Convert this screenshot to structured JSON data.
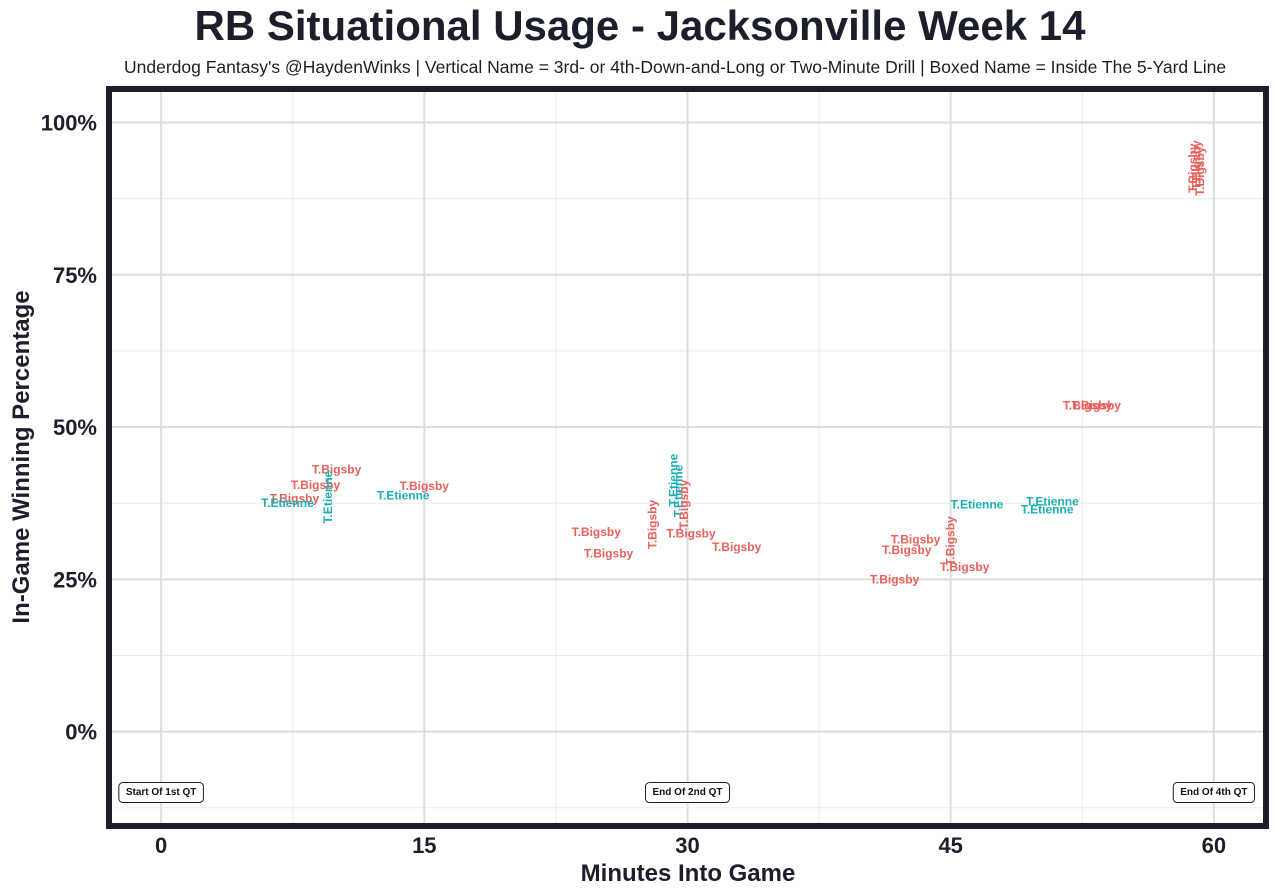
{
  "chart_data": {
    "type": "scatter",
    "title": "RB Situational Usage - Jacksonville Week 14",
    "subtitle": "Underdog Fantasy's @HaydenWinks | Vertical Name = 3rd- or 4th-Down-and-Long or Two-Minute Drill | Boxed Name = Inside The 5-Yard Line",
    "xlabel": "Minutes Into Game",
    "ylabel": "In-Game Winning Percentage",
    "xlim": [
      -2.8,
      62.8
    ],
    "ylim": [
      -15,
      105
    ],
    "x_ticks": [
      0,
      15,
      30,
      45,
      60
    ],
    "x_tick_labels": [
      "0",
      "15",
      "30",
      "45",
      "60"
    ],
    "y_ticks": [
      0,
      25,
      50,
      75,
      100
    ],
    "y_tick_labels": [
      "0%",
      "25%",
      "50%",
      "75%",
      "100%"
    ],
    "grid": true,
    "colors": {
      "T.Bigsby": "#e8615a",
      "T.Etienne": "#1aafb4"
    },
    "annotations": [
      {
        "x": 0,
        "y": -10,
        "text": "Start Of 1st QT"
      },
      {
        "x": 30,
        "y": -10,
        "text": "End Of 2nd QT"
      },
      {
        "x": 60,
        "y": -10,
        "text": "End Of 4th QT"
      }
    ],
    "points": [
      {
        "player": "T.Bigsby",
        "x": 10.0,
        "y": 43.0,
        "vertical": false
      },
      {
        "player": "T.Bigsby",
        "x": 8.8,
        "y": 40.5,
        "vertical": false
      },
      {
        "player": "T.Bigsby",
        "x": 7.6,
        "y": 38.3,
        "vertical": false
      },
      {
        "player": "T.Etienne",
        "x": 7.2,
        "y": 37.5,
        "vertical": false
      },
      {
        "player": "T.Etienne",
        "x": 9.5,
        "y": 38.5,
        "vertical": true
      },
      {
        "player": "T.Bigsby",
        "x": 15.0,
        "y": 40.3,
        "vertical": false
      },
      {
        "player": "T.Etienne",
        "x": 13.8,
        "y": 38.8,
        "vertical": false
      },
      {
        "player": "T.Bigsby",
        "x": 24.8,
        "y": 32.8,
        "vertical": false
      },
      {
        "player": "T.Bigsby",
        "x": 25.5,
        "y": 29.2,
        "vertical": false
      },
      {
        "player": "T.Bigsby",
        "x": 28.0,
        "y": 34.0,
        "vertical": true
      },
      {
        "player": "T.Etienne",
        "x": 29.2,
        "y": 41.3,
        "vertical": true
      },
      {
        "player": "T.Etienne",
        "x": 29.5,
        "y": 39.5,
        "vertical": true
      },
      {
        "player": "T.Bigsby",
        "x": 29.8,
        "y": 37.3,
        "vertical": true
      },
      {
        "player": "T.Bigsby",
        "x": 30.2,
        "y": 32.5,
        "vertical": false
      },
      {
        "player": "T.Bigsby",
        "x": 32.8,
        "y": 30.3,
        "vertical": false
      },
      {
        "player": "T.Bigsby",
        "x": 43.0,
        "y": 31.5,
        "vertical": false
      },
      {
        "player": "T.Bigsby",
        "x": 42.5,
        "y": 29.8,
        "vertical": false
      },
      {
        "player": "T.Bigsby",
        "x": 41.8,
        "y": 25.0,
        "vertical": false
      },
      {
        "player": "T.Bigsby",
        "x": 45.0,
        "y": 31.3,
        "vertical": true
      },
      {
        "player": "T.Bigsby",
        "x": 45.8,
        "y": 27.0,
        "vertical": false
      },
      {
        "player": "T.Etienne",
        "x": 46.5,
        "y": 37.3,
        "vertical": false
      },
      {
        "player": "T.Etienne",
        "x": 50.8,
        "y": 37.8,
        "vertical": false
      },
      {
        "player": "T.Etienne",
        "x": 50.5,
        "y": 36.5,
        "vertical": false
      },
      {
        "player": "T.Bigsby",
        "x": 52.8,
        "y": 53.5,
        "vertical": false
      },
      {
        "player": "T.Bigsby",
        "x": 53.3,
        "y": 53.5,
        "vertical": false
      },
      {
        "player": "T.Bigsby",
        "x": 58.8,
        "y": 92.5,
        "vertical": true
      },
      {
        "player": "T.Bigsby",
        "x": 59.0,
        "y": 93.0,
        "vertical": true
      },
      {
        "player": "T.Bigsby",
        "x": 59.2,
        "y": 92.0,
        "vertical": true
      }
    ]
  }
}
